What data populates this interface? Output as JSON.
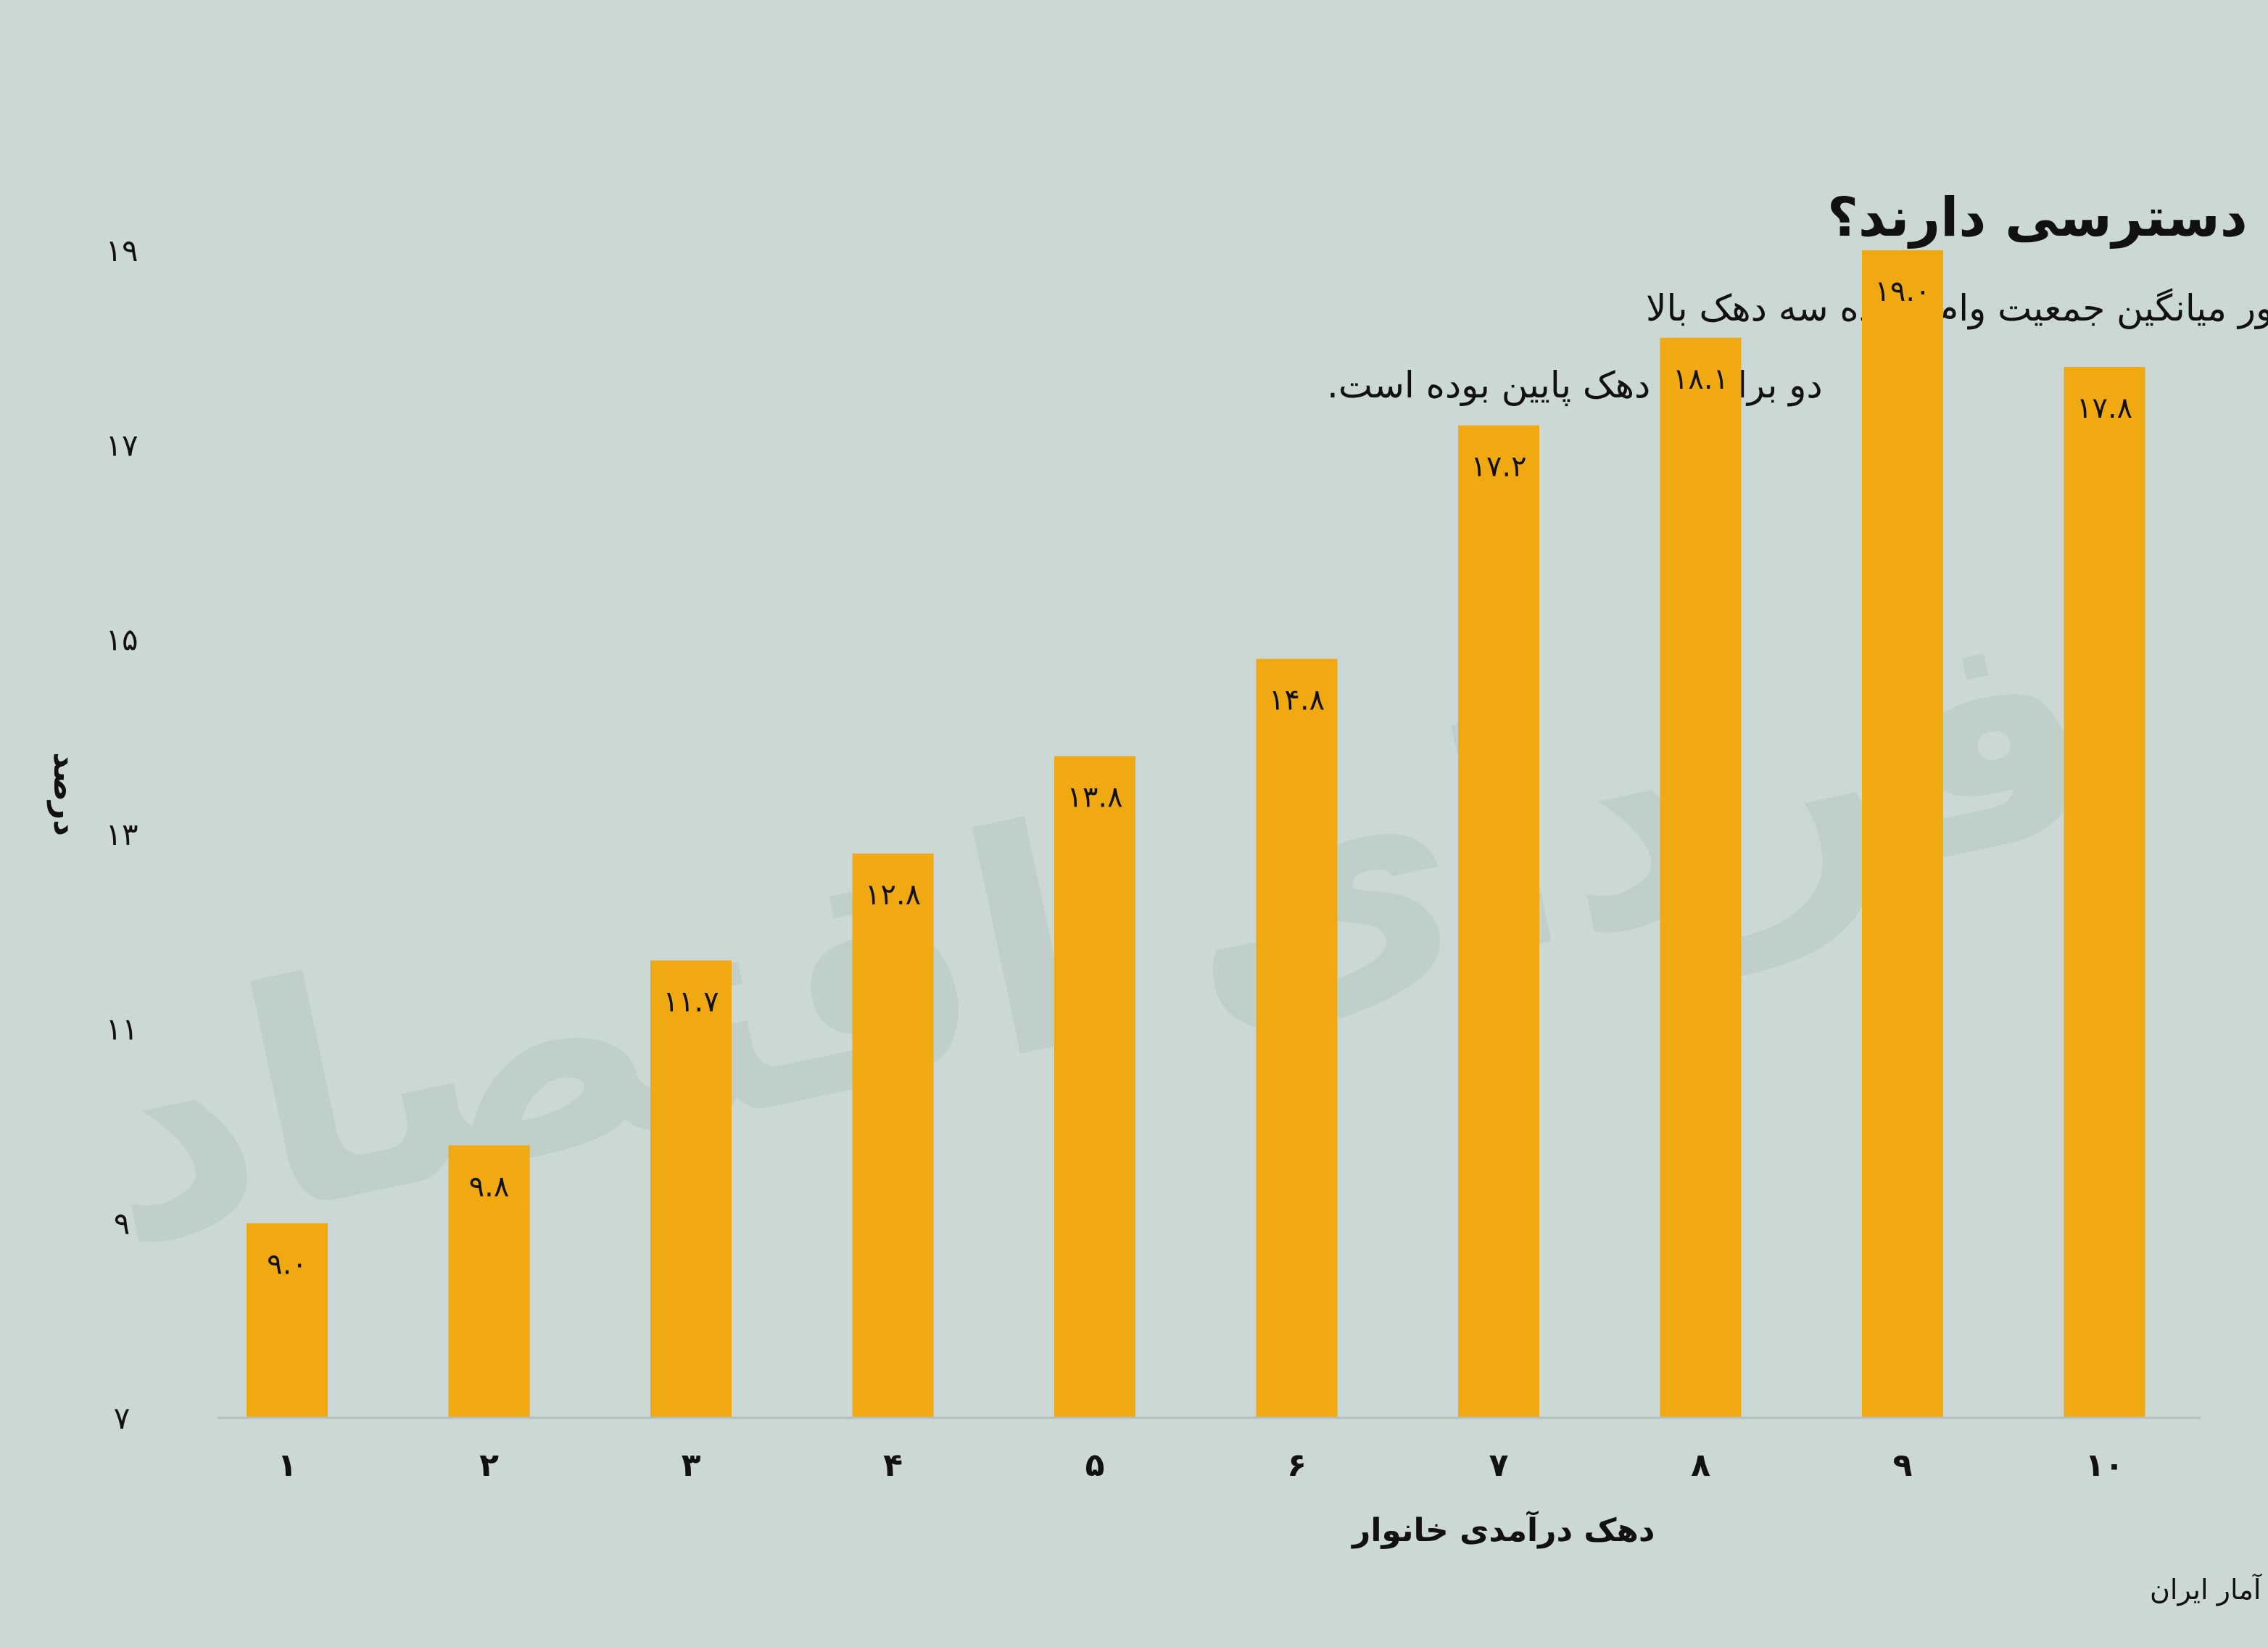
{
  "chart_data": {
    "type": "bar",
    "title": "چند درصد از سرپرستان خانوار هر دهک به وام دسترسی دارند؟",
    "subtitle_lines": [
      "در هفده سال گذشته به طور میانگین جمعیت وام‌گیرنده سه دهک بالا",
      "دو برابر دو دهک پایین بوده است."
    ],
    "xlabel": "دهک درآمدی خانوار",
    "ylabel": "درصد",
    "categories": [
      "۱",
      "۲",
      "۳",
      "۴",
      "۵",
      "۶",
      "۷",
      "۸",
      "۹",
      "۱۰"
    ],
    "values": [
      9.0,
      9.8,
      11.7,
      12.8,
      13.8,
      14.8,
      17.2,
      18.1,
      19.0,
      17.8
    ],
    "value_labels": [
      "۹.۰",
      "۹.۸",
      "۱۱.۷",
      "۱۲.۸",
      "۱۳.۸",
      "۱۴.۸",
      "۱۷.۲",
      "۱۸.۱",
      "۱۹.۰",
      "۱۷.۸"
    ],
    "ylim": [
      7,
      19
    ],
    "yticks": [
      7,
      9,
      11,
      13,
      15,
      17,
      19
    ],
    "ytick_labels": [
      "۷",
      "۹",
      "۱۱",
      "۱۳",
      "۱۵",
      "۱۷",
      "۱۹"
    ],
    "grid": false,
    "bar_color": "#f0a911",
    "source": "منبع: محاسبات فردای اقتصاد از داده‌های خام آمارگیری هزینه و درآمد خانوار مرکز آمار ایران",
    "watermark": "فردای اقتصاد"
  }
}
